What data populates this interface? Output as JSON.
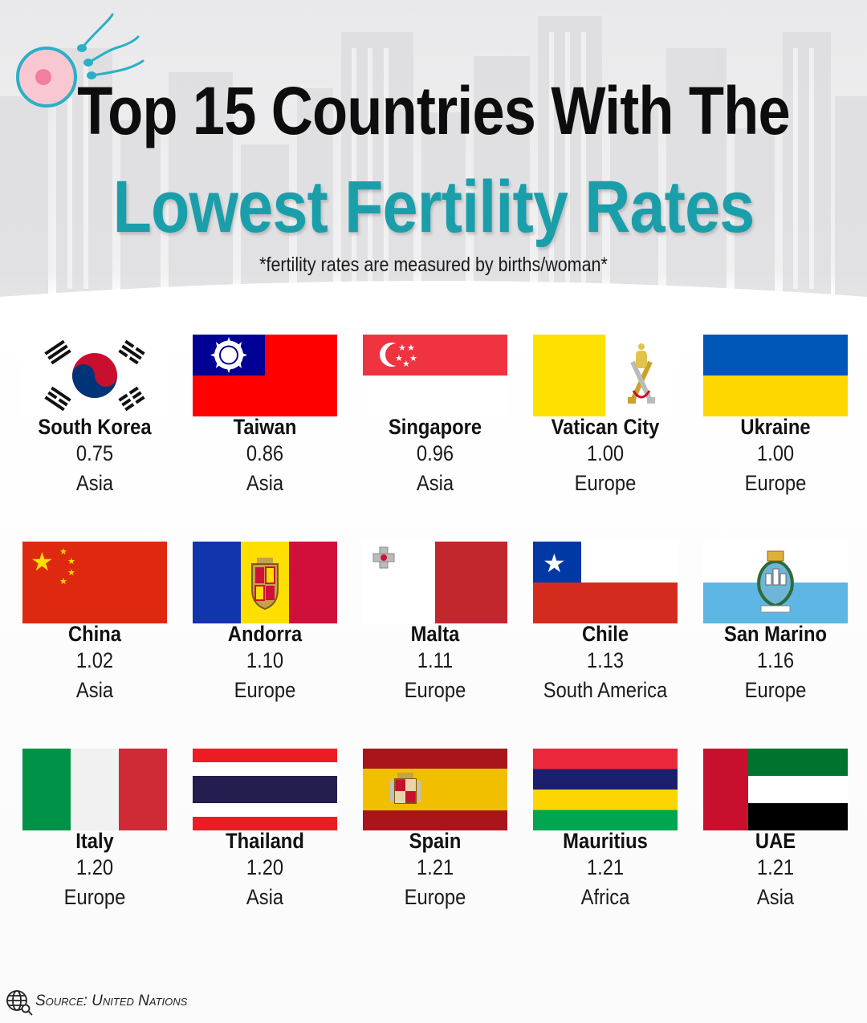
{
  "header": {
    "title_line1": "Top 15 Countries With The",
    "title_line2": "Lowest Fertility Rates",
    "subtitle": "*fertility rates are measured by births/woman*",
    "accent_color": "#1a9faa"
  },
  "countries": [
    {
      "name": "South Korea",
      "rate": "0.75",
      "region": "Asia",
      "flag_icon": "south-korea-flag-icon"
    },
    {
      "name": "Taiwan",
      "rate": "0.86",
      "region": "Asia",
      "flag_icon": "taiwan-flag-icon"
    },
    {
      "name": "Singapore",
      "rate": "0.96",
      "region": "Asia",
      "flag_icon": "singapore-flag-icon"
    },
    {
      "name": "Vatican City",
      "rate": "1.00",
      "region": "Europe",
      "flag_icon": "vatican-city-flag-icon"
    },
    {
      "name": "Ukraine",
      "rate": "1.00",
      "region": "Europe",
      "flag_icon": "ukraine-flag-icon"
    },
    {
      "name": "China",
      "rate": "1.02",
      "region": "Asia",
      "flag_icon": "china-flag-icon"
    },
    {
      "name": "Andorra",
      "rate": "1.10",
      "region": "Europe",
      "flag_icon": "andorra-flag-icon"
    },
    {
      "name": "Malta",
      "rate": "1.11",
      "region": "Europe",
      "flag_icon": "malta-flag-icon"
    },
    {
      "name": "Chile",
      "rate": "1.13",
      "region": "South America",
      "flag_icon": "chile-flag-icon"
    },
    {
      "name": "San Marino",
      "rate": "1.16",
      "region": "Europe",
      "flag_icon": "san-marino-flag-icon"
    },
    {
      "name": "Italy",
      "rate": "1.20",
      "region": "Europe",
      "flag_icon": "italy-flag-icon"
    },
    {
      "name": "Thailand",
      "rate": "1.20",
      "region": "Asia",
      "flag_icon": "thailand-flag-icon"
    },
    {
      "name": "Spain",
      "rate": "1.21",
      "region": "Europe",
      "flag_icon": "spain-flag-icon"
    },
    {
      "name": "Mauritius",
      "rate": "1.21",
      "region": "Africa",
      "flag_icon": "mauritius-flag-icon"
    },
    {
      "name": "UAE",
      "rate": "1.21",
      "region": "Asia",
      "flag_icon": "uae-flag-icon"
    }
  ],
  "footer": {
    "source": "Source: United Nations",
    "source_icon": "globe-search-icon"
  }
}
